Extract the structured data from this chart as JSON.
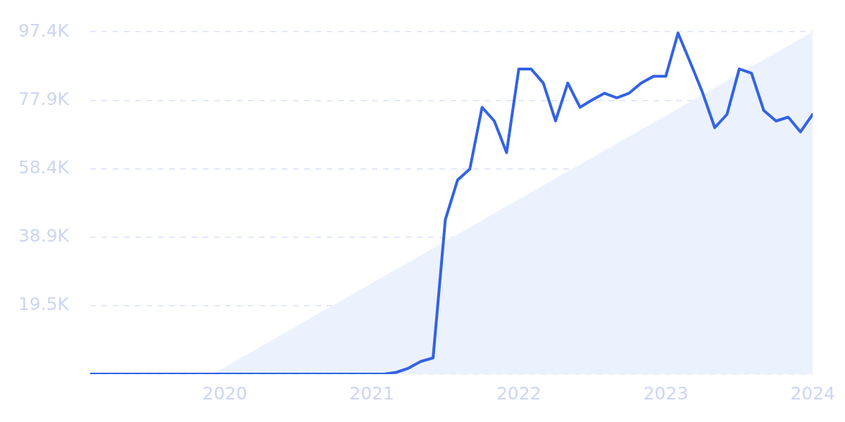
{
  "chart_data": {
    "type": "line",
    "x": [
      "2019-02",
      "2019-03",
      "2019-04",
      "2019-05",
      "2019-06",
      "2019-07",
      "2019-08",
      "2019-09",
      "2019-10",
      "2019-11",
      "2019-12",
      "2020-01",
      "2020-02",
      "2020-03",
      "2020-04",
      "2020-05",
      "2020-06",
      "2020-07",
      "2020-08",
      "2020-09",
      "2020-10",
      "2020-11",
      "2020-12",
      "2021-01",
      "2021-02",
      "2021-03",
      "2021-04",
      "2021-05",
      "2021-06",
      "2021-07",
      "2021-08",
      "2021-09",
      "2021-10",
      "2021-11",
      "2021-12",
      "2022-01",
      "2022-02",
      "2022-03",
      "2022-04",
      "2022-05",
      "2022-06",
      "2022-07",
      "2022-08",
      "2022-09",
      "2022-10",
      "2022-11",
      "2022-12",
      "2023-01",
      "2023-02",
      "2023-03",
      "2023-04",
      "2023-05",
      "2023-06",
      "2023-07",
      "2023-08",
      "2023-09",
      "2023-10",
      "2023-11",
      "2023-12",
      "2024-01"
    ],
    "series": [
      {
        "type": "area",
        "x": [
          "2019-12",
          "2024-01"
        ],
        "values": [
          0,
          97400
        ],
        "color": "#ebf2fd"
      },
      {
        "values": [
          0,
          0,
          0,
          0,
          0,
          0,
          0,
          0,
          0,
          0,
          0,
          0,
          0,
          0,
          0,
          0,
          0,
          0,
          0,
          0,
          0,
          0,
          0,
          0,
          0,
          500,
          1700,
          3600,
          4600,
          43900,
          55200,
          58300,
          75900,
          72000,
          63000,
          86800,
          86800,
          82800,
          72000,
          82800,
          75900,
          78000,
          79900,
          78600,
          79900,
          82800,
          84700,
          84700,
          97000,
          88700,
          80100,
          70100,
          73900,
          86800,
          85600,
          75000,
          72000,
          73100,
          68900,
          73900
        ],
        "color": "#3362e4"
      }
    ],
    "xlim": [
      "2019-02",
      "2024-01"
    ],
    "xticks": [
      "2020",
      "2021",
      "2022",
      "2023",
      "2024"
    ],
    "ylim": [
      0,
      97400
    ],
    "yticks": [
      {
        "value": 0,
        "label": null
      },
      {
        "value": 19500,
        "label": "19.5K"
      },
      {
        "value": 38900,
        "label": "38.9K"
      },
      {
        "value": 58400,
        "label": "58.4K"
      },
      {
        "value": 77900,
        "label": "77.9K"
      },
      {
        "value": 97400,
        "label": "97.4K"
      }
    ],
    "grid": "y",
    "legend": false,
    "marker": "none",
    "line_style": "solid"
  }
}
